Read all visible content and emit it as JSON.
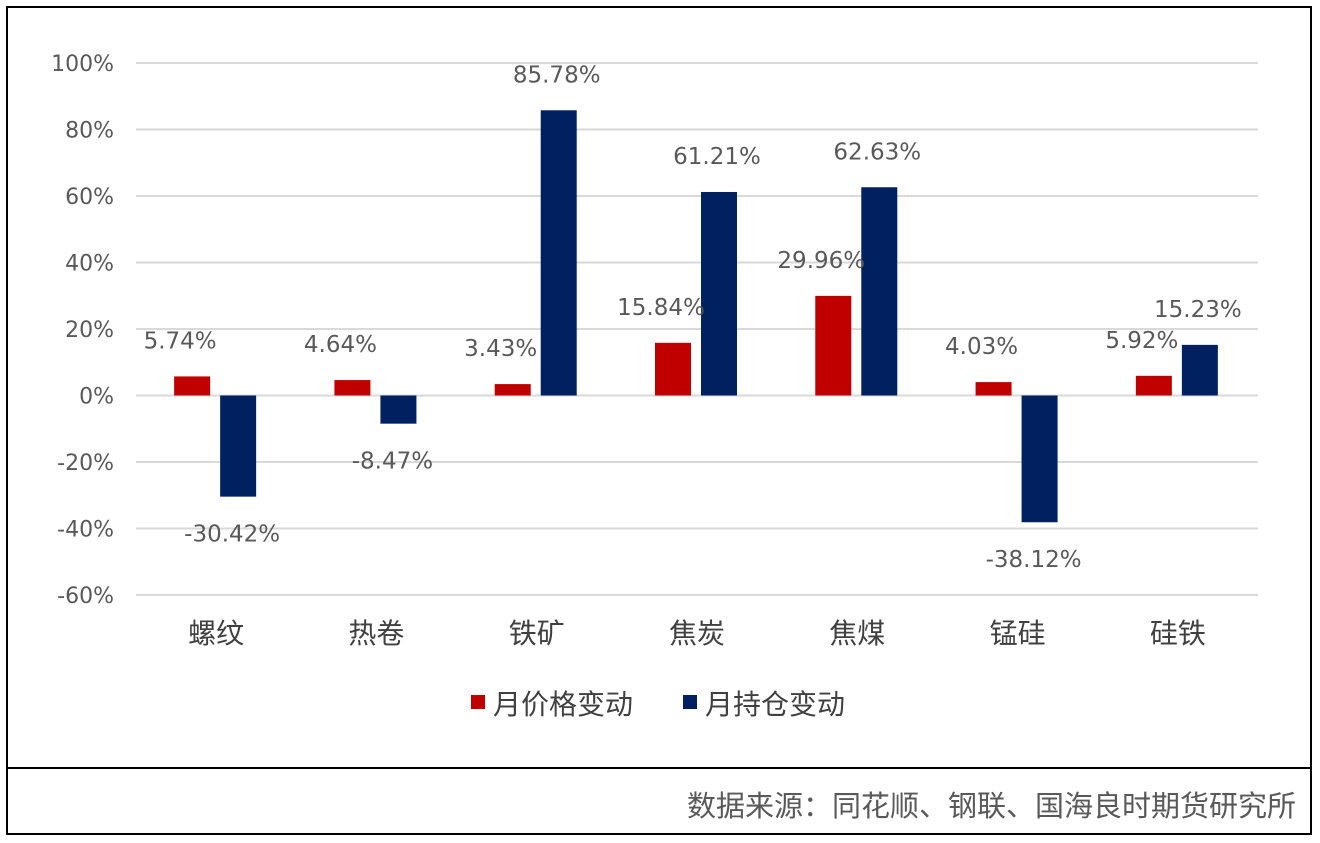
{
  "chart_data": {
    "type": "bar",
    "categories": [
      "螺纹",
      "热卷",
      "铁矿",
      "焦炭",
      "焦煤",
      "锰硅",
      "硅铁"
    ],
    "series": [
      {
        "name": "月价格变动",
        "color": "#C00000",
        "values": [
          5.74,
          4.64,
          3.43,
          15.84,
          29.96,
          4.03,
          5.92
        ],
        "labels": [
          "5.74%",
          "4.64%",
          "3.43%",
          "15.84%",
          "29.96%",
          "4.03%",
          "5.92%"
        ]
      },
      {
        "name": "月持仓变动",
        "color": "#002060",
        "values": [
          -30.42,
          -8.47,
          85.78,
          61.21,
          62.63,
          -38.12,
          15.23
        ],
        "labels": [
          "-30.42%",
          "-8.47%",
          "85.78%",
          "61.21%",
          "62.63%",
          "-38.12%",
          "15.23%"
        ]
      }
    ],
    "ylim": [
      -60,
      100
    ],
    "ytick_values": [
      100,
      80,
      60,
      40,
      20,
      0,
      -20,
      -40,
      -60
    ],
    "ytick_labels": [
      "100%",
      "80%",
      "60%",
      "40%",
      "20%",
      "0%",
      "-20%",
      "-40%",
      "-60%"
    ],
    "grid": true,
    "legend": "bottom"
  },
  "source": "数据来源：同花顺、钢联、国海良时期货研究所"
}
